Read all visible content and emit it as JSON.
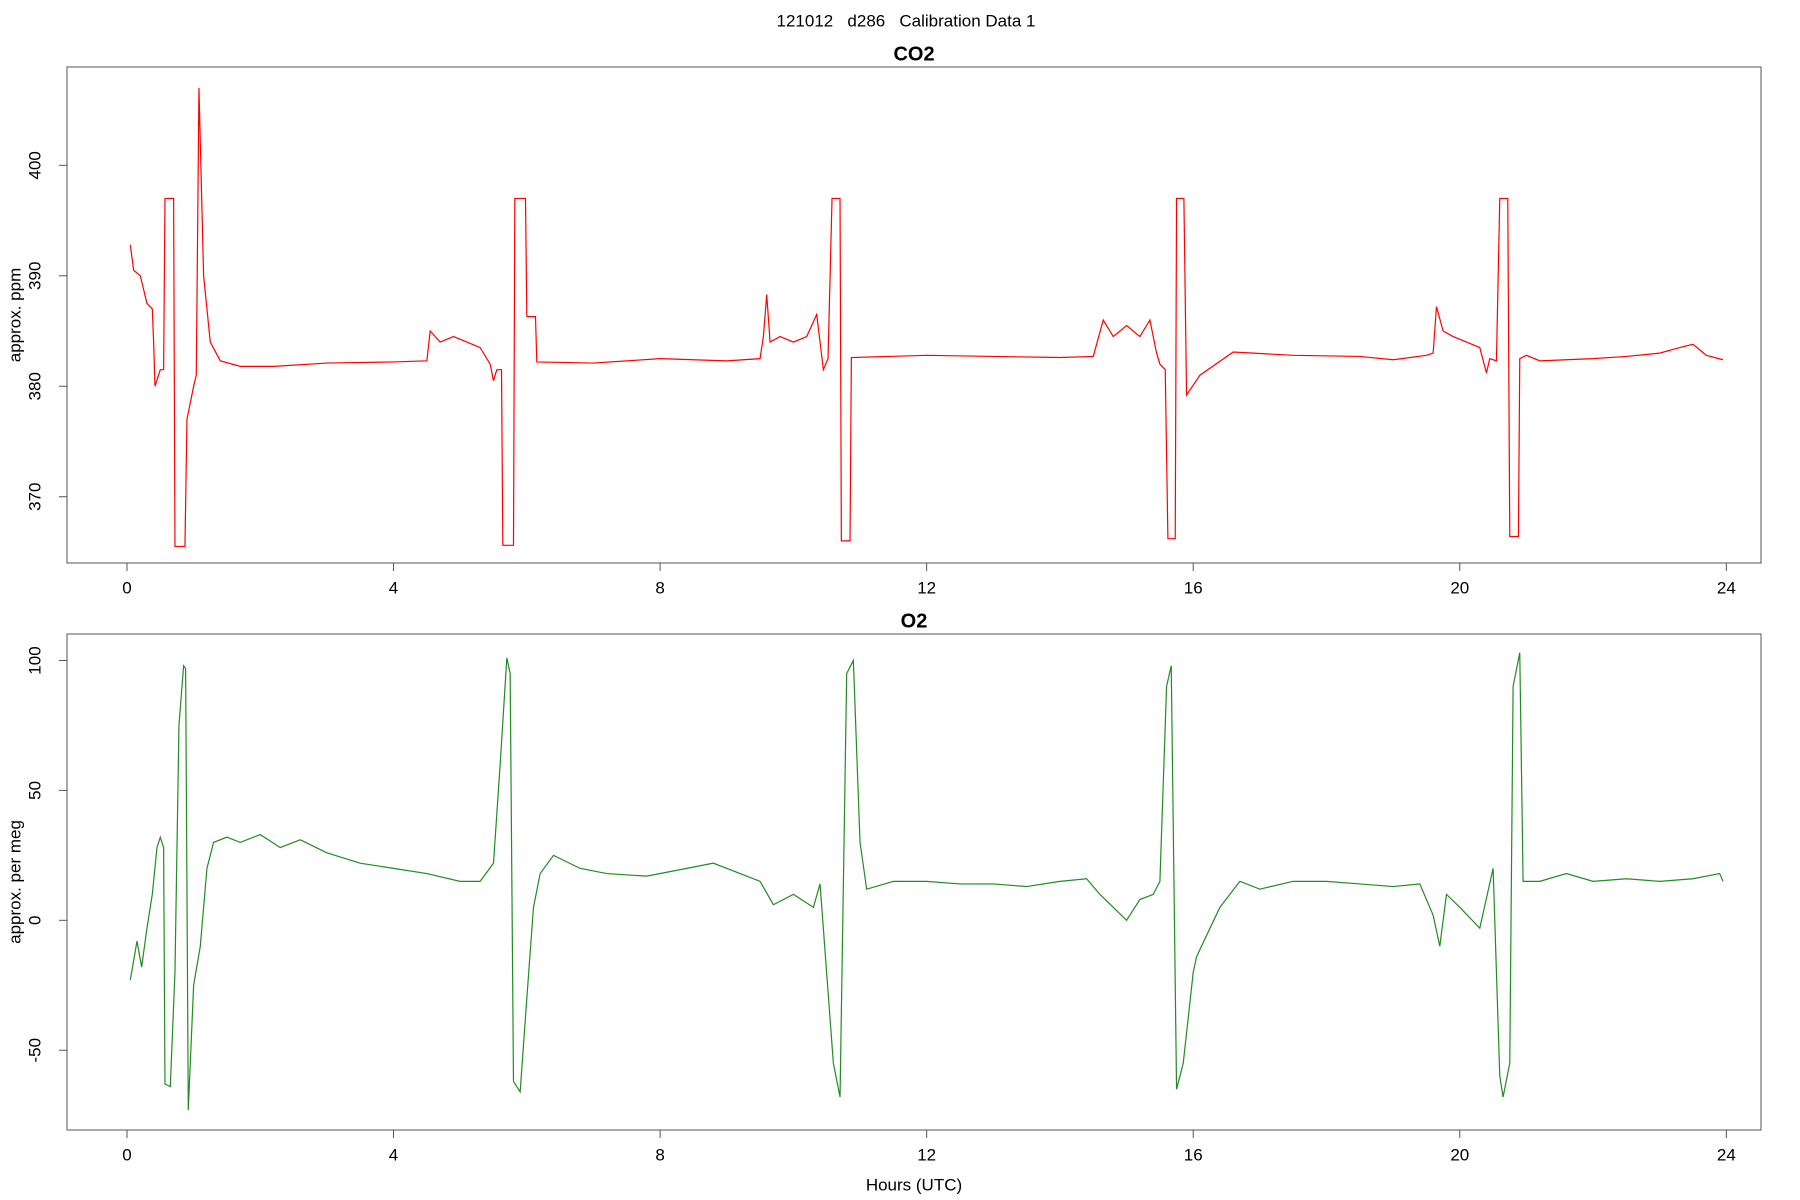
{
  "title": "121012   d286   Calibration Data 1",
  "chart_data": [
    {
      "type": "line",
      "title": "CO2",
      "ylabel": "approx. ppm",
      "color": "#ff0000",
      "xlim": [
        -0.9,
        24.52
      ],
      "ylim": [
        364.0,
        408.9
      ],
      "xticks": [
        0,
        4,
        8,
        12,
        16,
        20,
        24
      ],
      "yticks": [
        370,
        380,
        390,
        400
      ],
      "x": [
        0.05,
        0.1,
        0.2,
        0.3,
        0.38,
        0.4,
        0.42,
        0.5,
        0.55,
        0.57,
        0.7,
        0.72,
        0.87,
        0.9,
        1.0,
        1.04,
        1.08,
        1.15,
        1.25,
        1.4,
        1.7,
        2.2,
        3,
        4,
        4.5,
        4.55,
        4.7,
        4.9,
        5.1,
        5.3,
        5.45,
        5.5,
        5.55,
        5.62,
        5.64,
        5.8,
        5.82,
        5.98,
        6.0,
        6.13,
        6.15,
        7,
        8,
        9,
        9.5,
        9.55,
        9.6,
        9.65,
        9.8,
        10,
        10.2,
        10.35,
        10.4,
        10.45,
        10.52,
        10.58,
        10.7,
        10.72,
        10.85,
        10.87,
        12,
        13,
        14,
        14.5,
        14.65,
        14.8,
        15,
        15.2,
        15.35,
        15.45,
        15.5,
        15.58,
        15.62,
        15.73,
        15.75,
        15.86,
        15.9,
        16.1,
        16.6,
        17.5,
        18.5,
        19,
        19.5,
        19.6,
        19.65,
        19.75,
        19.9,
        20.1,
        20.3,
        20.4,
        20.45,
        20.55,
        20.6,
        20.72,
        20.75,
        20.88,
        20.9,
        21,
        21.2,
        22,
        22.5,
        23,
        23.3,
        23.5,
        23.7,
        23.95
      ],
      "values": [
        392.8,
        390.5,
        390,
        387.5,
        387,
        384,
        380,
        381.5,
        381.5,
        397,
        397,
        365.5,
        365.5,
        377,
        380,
        381,
        407,
        390,
        384,
        382.3,
        381.8,
        381.8,
        382.1,
        382.2,
        382.3,
        385,
        384,
        384.5,
        384,
        383.5,
        382,
        380.5,
        381.5,
        381.5,
        365.6,
        365.6,
        397,
        397,
        386.3,
        386.3,
        382.2,
        382.1,
        382.5,
        382.3,
        382.5,
        384.5,
        388.3,
        384,
        384.5,
        384,
        384.5,
        386.5,
        384,
        381.5,
        382.5,
        397,
        397,
        366,
        366,
        382.6,
        382.8,
        382.7,
        382.6,
        382.7,
        386,
        384.5,
        385.5,
        384.5,
        386,
        383,
        382,
        381.5,
        366.2,
        366.2,
        397,
        397,
        379.2,
        381,
        383.1,
        382.8,
        382.7,
        382.4,
        382.8,
        383,
        387.2,
        385,
        384.5,
        384,
        383.5,
        381.2,
        382.5,
        382.3,
        397,
        397,
        366.4,
        366.4,
        382.5,
        382.8,
        382.3,
        382.5,
        382.7,
        383,
        383.5,
        383.8,
        382.8,
        382.4
      ]
    },
    {
      "type": "line",
      "title": "O2",
      "ylabel": "approx. per meg",
      "xlabel": "Hours (UTC)",
      "color": "#228b22",
      "xlim": [
        -0.9,
        24.52
      ],
      "ylim": [
        -80.7,
        110.2
      ],
      "xticks": [
        0,
        4,
        8,
        12,
        16,
        20,
        24
      ],
      "yticks": [
        -50,
        0,
        50,
        100
      ],
      "x": [
        0.05,
        0.15,
        0.22,
        0.3,
        0.38,
        0.45,
        0.5,
        0.55,
        0.57,
        0.65,
        0.72,
        0.78,
        0.85,
        0.88,
        0.92,
        1.0,
        1.1,
        1.2,
        1.3,
        1.5,
        1.7,
        2.0,
        2.3,
        2.6,
        3.0,
        3.5,
        4.0,
        4.5,
        5.0,
        5.3,
        5.5,
        5.6,
        5.7,
        5.75,
        5.8,
        5.9,
        6.0,
        6.1,
        6.2,
        6.4,
        6.8,
        7.2,
        7.8,
        8.4,
        8.8,
        9.2,
        9.5,
        9.7,
        10.0,
        10.3,
        10.4,
        10.6,
        10.7,
        10.8,
        10.9,
        11.0,
        11.1,
        11.5,
        12,
        12.5,
        13,
        13.5,
        14,
        14.4,
        14.6,
        14.8,
        15.0,
        15.2,
        15.4,
        15.5,
        15.6,
        15.67,
        15.75,
        15.85,
        16.0,
        16.05,
        16.4,
        16.7,
        17,
        17.5,
        18,
        18.5,
        19,
        19.4,
        19.6,
        19.7,
        19.8,
        20.0,
        20.3,
        20.5,
        20.6,
        20.65,
        20.75,
        20.8,
        20.9,
        20.95,
        21.2,
        21.6,
        22,
        22.5,
        23,
        23.5,
        23.9,
        23.95
      ],
      "values": [
        -23,
        -8,
        -18,
        -3,
        10,
        28,
        32,
        28,
        -63,
        -64,
        -20,
        75,
        98,
        97,
        -73,
        -25,
        -10,
        20,
        30,
        32,
        30,
        33,
        28,
        31,
        26,
        22,
        20,
        18,
        15,
        15,
        22,
        60,
        101,
        95,
        -62,
        -66,
        -30,
        5,
        18,
        25,
        20,
        18,
        17,
        20,
        22,
        18,
        15,
        6,
        10,
        5,
        14,
        -55,
        -68,
        95,
        100,
        30,
        12,
        15,
        15,
        14,
        14,
        13,
        15,
        16,
        10,
        5,
        0,
        8,
        10,
        15,
        90,
        98,
        -65,
        -55,
        -20,
        -14,
        5,
        15,
        12,
        15,
        15,
        14,
        13,
        14,
        2,
        -10,
        10,
        5,
        -3,
        20,
        -60,
        -68,
        -55,
        90,
        103,
        15,
        15,
        18,
        15,
        16,
        15,
        16,
        18,
        15
      ]
    }
  ]
}
